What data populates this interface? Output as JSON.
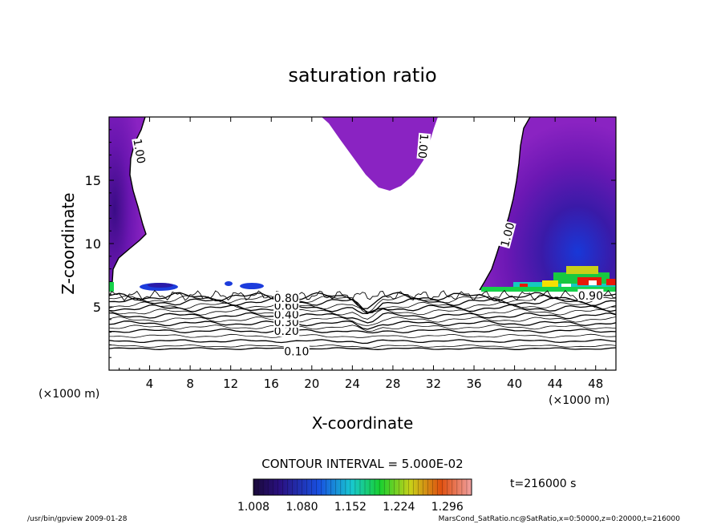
{
  "chart_data": {
    "type": "contour",
    "title": "saturation ratio",
    "xlabel": "X-coordinate",
    "ylabel": "Z-coordinate",
    "x_unit": "(×1000 m)",
    "z_unit": "(×1000 m)",
    "xlim": [
      0,
      50
    ],
    "ylim": [
      0,
      20
    ],
    "x_ticks": [
      4,
      8,
      12,
      16,
      20,
      24,
      28,
      32,
      36,
      40,
      44,
      48
    ],
    "y_ticks": [
      5,
      10,
      15
    ],
    "contour_interval_text": "CONTOUR INTERVAL = 5.000E-02",
    "time_text": "t=216000 s",
    "colorbar_ticks": [
      "1.008",
      "1.080",
      "1.152",
      "1.224",
      "1.296"
    ],
    "colorbar_range": [
      1.008,
      1.332
    ],
    "contour_labels": [
      {
        "text": "0.10",
        "x": 18.5,
        "z": 1.5
      },
      {
        "text": "0.20",
        "x": 17.5,
        "z": 3.1
      },
      {
        "text": "0.30",
        "x": 17.5,
        "z": 3.8
      },
      {
        "text": "0.40",
        "x": 17.5,
        "z": 4.4
      },
      {
        "text": "0.60",
        "x": 17.5,
        "z": 5.1
      },
      {
        "text": "0.80",
        "x": 17.5,
        "z": 5.7
      },
      {
        "text": "0.90",
        "x": 47.5,
        "z": 5.9
      },
      {
        "text": "1.00",
        "x": 3.0,
        "z": 17.3
      },
      {
        "text": "1.00",
        "x": 31.0,
        "z": 17.7
      },
      {
        "text": "1.00",
        "x": 39.3,
        "z": 10.7
      }
    ],
    "contour_levels_z": [
      1.7,
      1.9,
      2.3,
      2.7,
      3.1,
      3.4,
      3.7,
      4.0,
      4.3,
      4.6,
      4.9,
      5.1,
      5.4,
      5.6,
      5.8
    ],
    "colors": {
      "low": "#2a0a6a",
      "mid": "#7b14b8",
      "fill": "#8a23c2",
      "blue": "#1c3cdc",
      "green": "#16d24a",
      "yellow": "#f5e000",
      "red": "#e81808"
    }
  },
  "footer": {
    "left": "/usr/bin/gpview   2009-01-28",
    "right": "MarsCond_SatRatio.nc@SatRatio,x=0:50000,z=0:20000,t=216000"
  }
}
